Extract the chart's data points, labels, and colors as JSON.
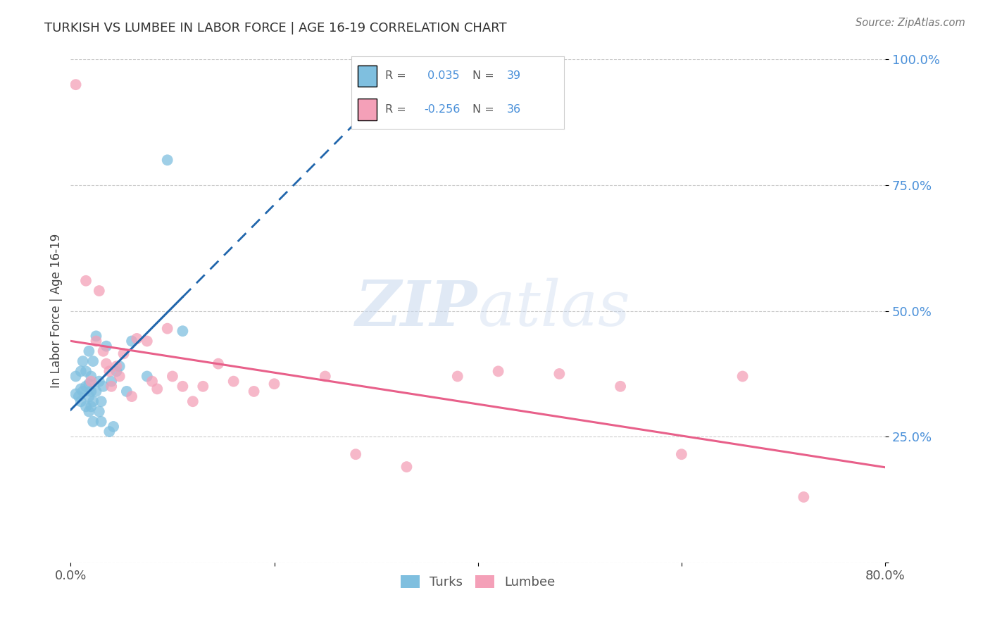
{
  "title": "TURKISH VS LUMBEE IN LABOR FORCE | AGE 16-19 CORRELATION CHART",
  "source": "Source: ZipAtlas.com",
  "ylabel": "In Labor Force | Age 16-19",
  "xlim": [
    0.0,
    0.8
  ],
  "ylim": [
    0.0,
    1.0
  ],
  "turks_color": "#7fbfdf",
  "lumbee_color": "#f4a0b8",
  "turks_line_color": "#2166ac",
  "lumbee_line_color": "#e8608a",
  "watermark_zip": "ZIP",
  "watermark_atlas": "atlas",
  "turks_x": [
    0.005,
    0.005,
    0.008,
    0.01,
    0.01,
    0.01,
    0.012,
    0.012,
    0.015,
    0.015,
    0.015,
    0.018,
    0.018,
    0.018,
    0.018,
    0.02,
    0.02,
    0.02,
    0.022,
    0.022,
    0.022,
    0.025,
    0.025,
    0.028,
    0.028,
    0.03,
    0.03,
    0.032,
    0.035,
    0.038,
    0.04,
    0.042,
    0.045,
    0.048,
    0.055,
    0.06,
    0.075,
    0.095,
    0.11
  ],
  "turks_y": [
    0.335,
    0.37,
    0.33,
    0.32,
    0.345,
    0.38,
    0.34,
    0.4,
    0.31,
    0.35,
    0.38,
    0.3,
    0.33,
    0.355,
    0.42,
    0.31,
    0.34,
    0.37,
    0.28,
    0.32,
    0.4,
    0.34,
    0.45,
    0.3,
    0.36,
    0.28,
    0.32,
    0.35,
    0.43,
    0.26,
    0.36,
    0.27,
    0.38,
    0.39,
    0.34,
    0.44,
    0.37,
    0.8,
    0.46
  ],
  "lumbee_x": [
    0.005,
    0.015,
    0.02,
    0.025,
    0.028,
    0.032,
    0.035,
    0.038,
    0.04,
    0.045,
    0.048,
    0.052,
    0.06,
    0.065,
    0.075,
    0.08,
    0.085,
    0.095,
    0.1,
    0.11,
    0.12,
    0.13,
    0.145,
    0.16,
    0.18,
    0.2,
    0.25,
    0.28,
    0.33,
    0.38,
    0.42,
    0.48,
    0.54,
    0.6,
    0.66,
    0.72
  ],
  "lumbee_y": [
    0.95,
    0.56,
    0.36,
    0.44,
    0.54,
    0.42,
    0.395,
    0.38,
    0.35,
    0.39,
    0.37,
    0.415,
    0.33,
    0.445,
    0.44,
    0.36,
    0.345,
    0.465,
    0.37,
    0.35,
    0.32,
    0.35,
    0.395,
    0.36,
    0.34,
    0.355,
    0.37,
    0.215,
    0.19,
    0.37,
    0.38,
    0.375,
    0.35,
    0.215,
    0.37,
    0.13
  ]
}
